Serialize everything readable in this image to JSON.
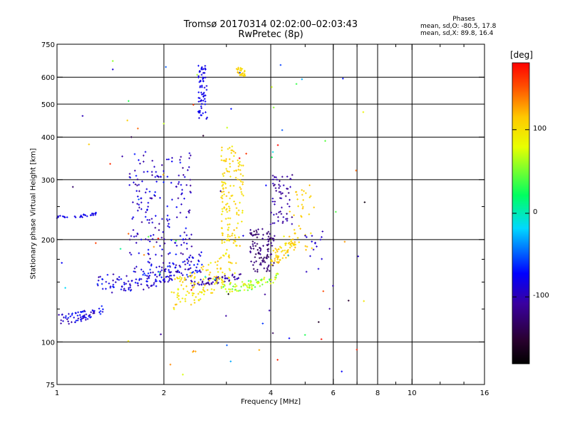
{
  "chart_data": {
    "type": "scatter",
    "title": "Tromsø 20170314 02:02:00–02:03:43",
    "subtitle": "RwPretec (8p)",
    "xlabel": "Frequency [MHz]",
    "ylabel": "Stationary phase Virtual Height [km]",
    "x_scale": "log",
    "y_scale": "log",
    "xlim": [
      1,
      16
    ],
    "ylim": [
      75,
      750
    ],
    "x_ticks": [
      1,
      2,
      4,
      6,
      8,
      10,
      16
    ],
    "x_tick_labels": [
      "1",
      "2",
      "4",
      "6",
      "8",
      "10",
      "16"
    ],
    "x_minor_ticks": [
      3,
      5,
      7,
      9,
      12,
      14
    ],
    "y_ticks": [
      75,
      100,
      200,
      300,
      400,
      500,
      600,
      750
    ],
    "y_tick_labels": [
      "75",
      "100",
      "200",
      "300",
      "400",
      "500",
      "600",
      "750"
    ],
    "y_minor_ticks": [
      125,
      150,
      175,
      250
    ],
    "grid_x": [
      2,
      4,
      6,
      7,
      8,
      10
    ],
    "grid_y": [
      100,
      200,
      300,
      400,
      500,
      600
    ],
    "phase_stats": {
      "title": "Phases",
      "line_o": "mean, sd,O: -80.5, 17.8",
      "line_x": "mean, sd,X:  89.8, 16.4"
    },
    "colorbar": {
      "unit": "[deg]",
      "range": [
        -180,
        180
      ],
      "ticks": [
        100,
        0,
        -100
      ],
      "tick_labels": [
        "100",
        "0",
        "-100"
      ],
      "colormap": "rainbow"
    },
    "clusters": [
      {
        "f": [
          1.0,
          1.35
        ],
        "h": [
          111,
          130
        ],
        "phase": [
          -110,
          -60
        ],
        "n": 70,
        "form": "band"
      },
      {
        "f": [
          1.0,
          1.3
        ],
        "h": [
          230,
          240
        ],
        "phase": [
          -90,
          -70
        ],
        "n": 30,
        "form": "band"
      },
      {
        "f": [
          1.3,
          2.6
        ],
        "h": [
          135,
          185
        ],
        "phase": [
          -110,
          -60
        ],
        "n": 170,
        "form": "band"
      },
      {
        "f": [
          1.6,
          2.4
        ],
        "h": [
          160,
          360
        ],
        "phase": [
          -115,
          -65
        ],
        "n": 200,
        "form": "cloud"
      },
      {
        "f": [
          2.5,
          2.65
        ],
        "h": [
          450,
          650
        ],
        "phase": [
          -90,
          -70
        ],
        "n": 70,
        "form": "cloud"
      },
      {
        "f": [
          2.3,
          3.3
        ],
        "h": [
          145,
          160
        ],
        "phase": [
          -120,
          -90
        ],
        "n": 60,
        "form": "band"
      },
      {
        "f": [
          2.1,
          3.2
        ],
        "h": [
          120,
          200
        ],
        "phase": [
          80,
          120
        ],
        "n": 130,
        "form": "band"
      },
      {
        "f": [
          2.9,
          3.35
        ],
        "h": [
          190,
          380
        ],
        "phase": [
          90,
          120
        ],
        "n": 140,
        "form": "cloud"
      },
      {
        "f": [
          3.2,
          3.4
        ],
        "h": [
          600,
          640
        ],
        "phase": [
          100,
          120
        ],
        "n": 25,
        "form": "cloud"
      },
      {
        "f": [
          2.9,
          4.2
        ],
        "h": [
          138,
          160
        ],
        "phase": [
          30,
          100
        ],
        "n": 80,
        "form": "band"
      },
      {
        "f": [
          3.5,
          4.1
        ],
        "h": [
          160,
          215
        ],
        "phase": [
          -140,
          -110
        ],
        "n": 100,
        "form": "cloud"
      },
      {
        "f": [
          4.0,
          4.7
        ],
        "h": [
          165,
          210
        ],
        "phase": [
          95,
          125
        ],
        "n": 60,
        "form": "band"
      },
      {
        "f": [
          4.0,
          4.6
        ],
        "h": [
          220,
          310
        ],
        "phase": [
          -120,
          -95
        ],
        "n": 60,
        "form": "cloud"
      },
      {
        "f": [
          4.5,
          5.3
        ],
        "h": [
          185,
          290
        ],
        "phase": [
          100,
          120
        ],
        "n": 40,
        "form": "cloud"
      },
      {
        "f": [
          5.0,
          5.6
        ],
        "h": [
          160,
          215
        ],
        "phase": [
          -100,
          -80
        ],
        "n": 15,
        "form": "cloud"
      },
      {
        "f": [
          1.0,
          7.5
        ],
        "h": [
          80,
          680
        ],
        "phase": [
          -180,
          180
        ],
        "n": 90,
        "form": "sparse"
      }
    ]
  }
}
